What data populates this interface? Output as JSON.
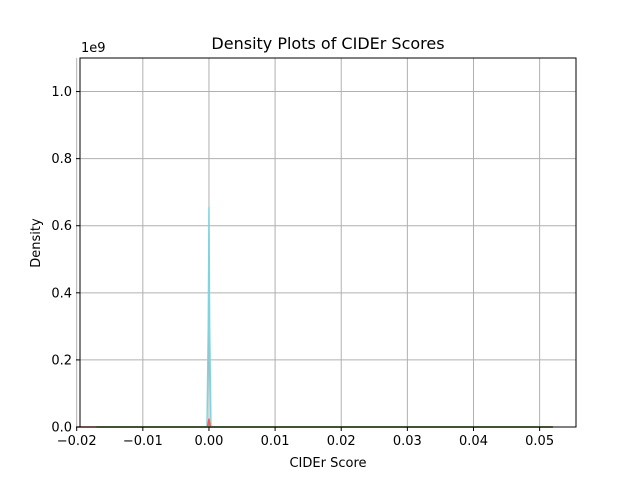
{
  "chart_data": {
    "type": "line",
    "title": "Density Plots of CIDEr Scores",
    "xlabel": "CIDEr Score",
    "ylabel": "Density",
    "y_offset_label": "1e9",
    "xlim": [
      -0.0195,
      0.0555
    ],
    "ylim": [
      0,
      1.1
    ],
    "x_ticks": [
      -0.02,
      -0.01,
      0.0,
      0.01,
      0.02,
      0.03,
      0.04,
      0.05
    ],
    "x_tick_labels": [
      "−0.02",
      "−0.01",
      "0.00",
      "0.01",
      "0.02",
      "0.03",
      "0.04",
      "0.05"
    ],
    "y_ticks": [
      0.0,
      0.2,
      0.4,
      0.6,
      0.8,
      1.0
    ],
    "y_tick_labels": [
      "0.0",
      "0.2",
      "0.4",
      "0.6",
      "0.8",
      "1.0"
    ],
    "grid": true,
    "series": [
      {
        "color": "#7fd4e0",
        "x": [
          -0.02,
          -0.0003,
          -0.0001,
          0.0,
          0.0001,
          0.0003,
          0.052
        ],
        "y": [
          0.0,
          0.0,
          0.3,
          0.655,
          0.3,
          0.0,
          0.0
        ]
      },
      {
        "color": "#ff5555",
        "x": [
          -0.02,
          -0.0002,
          0.0,
          0.0002,
          0.052
        ],
        "y": [
          0.0,
          0.0,
          0.025,
          0.0,
          0.0
        ]
      },
      {
        "color": "#2ca02c",
        "x": [
          -0.017,
          0.052
        ],
        "y": [
          0.0,
          0.0
        ]
      }
    ]
  }
}
